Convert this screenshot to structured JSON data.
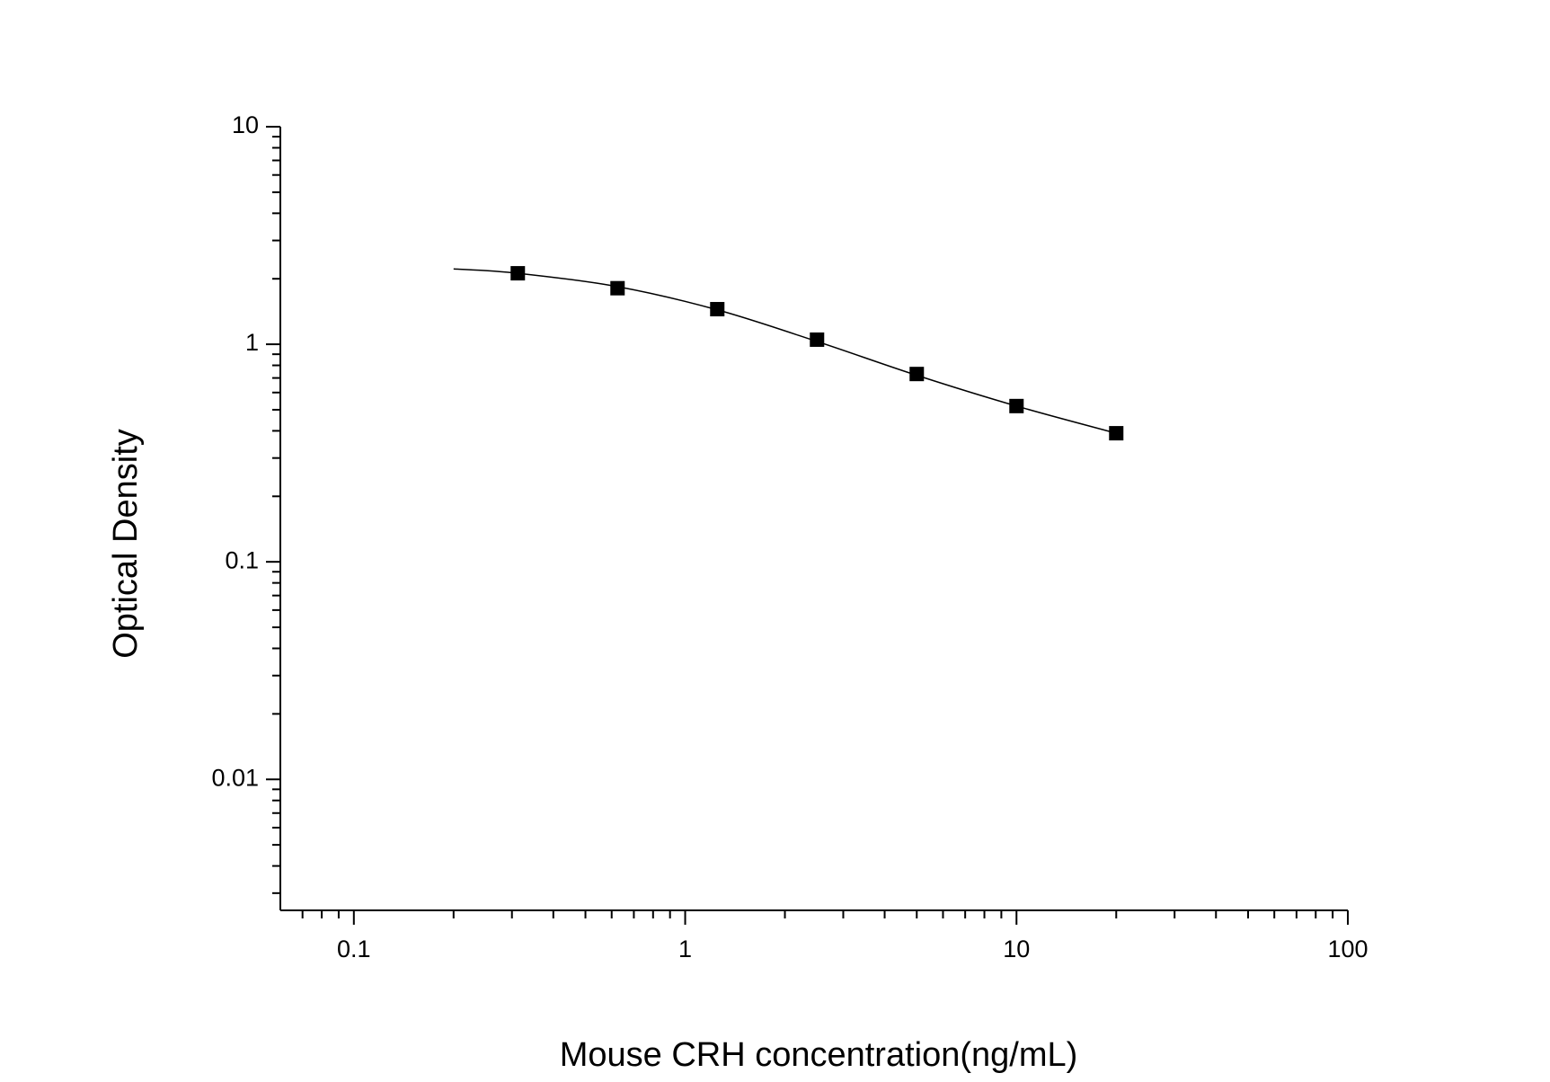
{
  "chart_data": {
    "type": "scatter",
    "x_label": "Mouse CRH concentration(ng/mL)",
    "y_label": "Optical Density",
    "x_log": true,
    "y_log": true,
    "xlim": [
      0.06,
      100
    ],
    "ylim": [
      0.0025,
      10
    ],
    "xticks": [
      0.1,
      1,
      10,
      100
    ],
    "yticks": [
      0.01,
      0.1,
      1,
      10
    ],
    "series": [
      {
        "type": "scatter",
        "color": "#000000",
        "x": [
          0.3125,
          0.625,
          1.25,
          2.5,
          5,
          10,
          20
        ],
        "values": [
          2.12,
          1.81,
          1.45,
          1.05,
          0.73,
          0.52,
          0.39
        ]
      },
      {
        "type": "line",
        "color": "#000000",
        "x": [
          0.2,
          0.3125,
          0.625,
          1.25,
          2.5,
          5,
          10,
          20
        ],
        "values": [
          2.22,
          2.12,
          1.84,
          1.44,
          1.03,
          0.72,
          0.52,
          0.39
        ]
      }
    ]
  }
}
